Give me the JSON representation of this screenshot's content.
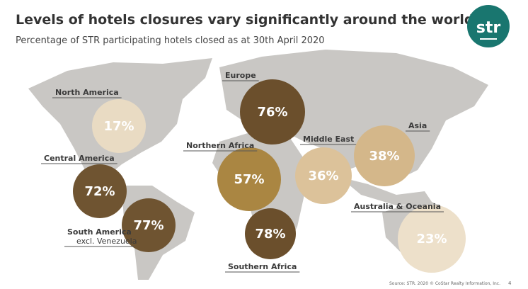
{
  "header": {
    "title": "Levels of hotels closures vary significantly around the world",
    "subtitle": "Percentage of STR participating hotels closed as at 30th April 2020",
    "logo": "str"
  },
  "regions": [
    {
      "label": "North America",
      "value": "17%",
      "color": "#e9dbc3"
    },
    {
      "label": "Central America",
      "value": "72%",
      "color": "#6f5431"
    },
    {
      "label": "South America",
      "note": "excl. Venezuela",
      "value": "77%",
      "color": "#6f5431"
    },
    {
      "label": "Europe",
      "value": "76%",
      "color": "#6b4f2c"
    },
    {
      "label": "Northern Africa",
      "value": "57%",
      "color": "#aa8642"
    },
    {
      "label": "Southern Africa",
      "value": "78%",
      "color": "#6b4f2c"
    },
    {
      "label": "Middle East",
      "value": "36%",
      "color": "#dcc29a"
    },
    {
      "label": "Asia",
      "value": "38%",
      "color": "#d4b78a"
    },
    {
      "label": "Australia & Oceania",
      "value": "23%",
      "color": "#ede0ca"
    }
  ],
  "footer": {
    "source": "Source: STR. 2020 © CoStar Realty Information, Inc.",
    "page": "4"
  }
}
